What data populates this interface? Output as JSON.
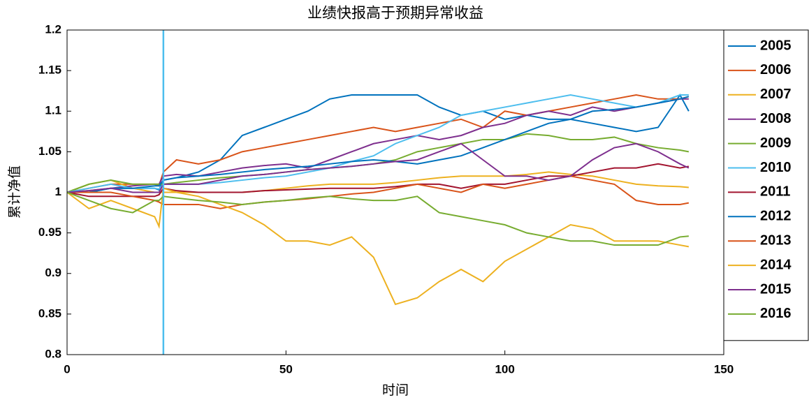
{
  "chart_data": {
    "type": "line",
    "title": "业绩快报高于预期异常收益",
    "xlabel": "时间",
    "ylabel": "累计净值",
    "x": [
      0,
      5,
      10,
      15,
      20,
      21,
      22,
      25,
      30,
      35,
      40,
      45,
      50,
      55,
      60,
      65,
      70,
      75,
      80,
      85,
      90,
      95,
      100,
      105,
      110,
      115,
      120,
      125,
      130,
      135,
      140,
      142
    ],
    "series": [
      {
        "name": "2005",
        "color": "#0072BD",
        "values": [
          1.0,
          1.0,
          1.005,
          1.005,
          1.005,
          1.003,
          1.015,
          1.018,
          1.025,
          1.04,
          1.07,
          1.08,
          1.09,
          1.1,
          1.115,
          1.12,
          1.12,
          1.12,
          1.12,
          1.105,
          1.095,
          1.1,
          1.09,
          1.095,
          1.09,
          1.09,
          1.085,
          1.08,
          1.075,
          1.08,
          1.12,
          1.1
        ]
      },
      {
        "name": "2006",
        "color": "#D95319",
        "values": [
          1.0,
          1.005,
          1.01,
          1.01,
          1.01,
          1.008,
          1.025,
          1.04,
          1.035,
          1.04,
          1.05,
          1.055,
          1.06,
          1.065,
          1.07,
          1.075,
          1.08,
          1.075,
          1.08,
          1.085,
          1.09,
          1.08,
          1.1,
          1.095,
          1.1,
          1.105,
          1.11,
          1.115,
          1.12,
          1.115,
          1.115,
          1.118
        ]
      },
      {
        "name": "2007",
        "color": "#EDB120",
        "values": [
          1.0,
          1.01,
          1.015,
          1.005,
          1.0,
          1.0,
          1.0,
          1.0,
          1.0,
          1.0,
          1.0,
          1.002,
          1.005,
          1.008,
          1.01,
          1.01,
          1.01,
          1.012,
          1.015,
          1.018,
          1.02,
          1.02,
          1.02,
          1.022,
          1.025,
          1.022,
          1.02,
          1.015,
          1.01,
          1.008,
          1.007,
          1.006
        ]
      },
      {
        "name": "2008",
        "color": "#7E2F8E",
        "values": [
          1.0,
          1.002,
          1.005,
          1.008,
          1.01,
          1.01,
          1.02,
          1.022,
          1.02,
          1.025,
          1.03,
          1.033,
          1.035,
          1.03,
          1.04,
          1.05,
          1.06,
          1.065,
          1.07,
          1.065,
          1.07,
          1.08,
          1.085,
          1.095,
          1.1,
          1.095,
          1.105,
          1.1,
          1.105,
          1.11,
          1.115,
          1.115
        ]
      },
      {
        "name": "2009",
        "color": "#77AC30",
        "values": [
          1.0,
          1.01,
          1.015,
          1.01,
          1.01,
          1.01,
          1.01,
          1.012,
          1.015,
          1.018,
          1.02,
          1.022,
          1.025,
          1.028,
          1.03,
          1.032,
          1.035,
          1.04,
          1.05,
          1.055,
          1.06,
          1.065,
          1.065,
          1.072,
          1.07,
          1.065,
          1.065,
          1.068,
          1.06,
          1.055,
          1.052,
          1.05
        ]
      },
      {
        "name": "2010",
        "color": "#4DBEEE",
        "values": [
          1.0,
          1.005,
          1.01,
          1.005,
          1.005,
          1.004,
          1.01,
          1.01,
          1.01,
          1.012,
          1.015,
          1.018,
          1.02,
          1.025,
          1.03,
          1.038,
          1.045,
          1.06,
          1.07,
          1.08,
          1.095,
          1.1,
          1.105,
          1.11,
          1.115,
          1.12,
          1.115,
          1.11,
          1.105,
          1.11,
          1.12,
          1.12
        ]
      },
      {
        "name": "2011",
        "color": "#A2142F",
        "values": [
          1.0,
          0.995,
          0.995,
          0.995,
          0.995,
          0.997,
          1.005,
          1.002,
          1.0,
          1.0,
          1.0,
          1.002,
          1.003,
          1.004,
          1.005,
          1.005,
          1.005,
          1.007,
          1.01,
          1.01,
          1.005,
          1.01,
          1.01,
          1.015,
          1.02,
          1.02,
          1.025,
          1.03,
          1.03,
          1.035,
          1.03,
          1.032
        ]
      },
      {
        "name": "2012",
        "color": "#0072BD",
        "values": [
          1.0,
          1.0,
          1.005,
          1.005,
          1.008,
          1.008,
          1.015,
          1.018,
          1.02,
          1.022,
          1.025,
          1.028,
          1.03,
          1.032,
          1.035,
          1.038,
          1.04,
          1.038,
          1.035,
          1.04,
          1.045,
          1.055,
          1.065,
          1.075,
          1.085,
          1.09,
          1.1,
          1.102,
          1.105,
          1.11,
          1.115,
          1.118
        ]
      },
      {
        "name": "2013",
        "color": "#D95319",
        "values": [
          1.0,
          1.0,
          1.0,
          0.995,
          0.99,
          0.988,
          0.985,
          0.985,
          0.985,
          0.98,
          0.985,
          0.988,
          0.99,
          0.992,
          0.995,
          0.998,
          1.0,
          1.005,
          1.01,
          1.005,
          1.0,
          1.01,
          1.005,
          1.01,
          1.015,
          1.02,
          1.015,
          1.01,
          0.99,
          0.985,
          0.985,
          0.987
        ]
      },
      {
        "name": "2014",
        "color": "#EDB120",
        "values": [
          1.0,
          0.98,
          0.99,
          0.98,
          0.97,
          0.958,
          1.005,
          1.0,
          0.995,
          0.985,
          0.975,
          0.96,
          0.94,
          0.94,
          0.935,
          0.945,
          0.92,
          0.862,
          0.87,
          0.89,
          0.905,
          0.89,
          0.915,
          0.93,
          0.945,
          0.96,
          0.955,
          0.94,
          0.94,
          0.94,
          0.935,
          0.933
        ]
      },
      {
        "name": "2015",
        "color": "#7E2F8E",
        "values": [
          1.0,
          1.002,
          1.005,
          1.0,
          1.0,
          1.0,
          1.01,
          1.01,
          1.01,
          1.015,
          1.02,
          1.022,
          1.025,
          1.028,
          1.03,
          1.032,
          1.035,
          1.038,
          1.04,
          1.05,
          1.06,
          1.04,
          1.02,
          1.02,
          1.015,
          1.02,
          1.04,
          1.055,
          1.06,
          1.05,
          1.035,
          1.03
        ]
      },
      {
        "name": "2016",
        "color": "#77AC30",
        "values": [
          1.0,
          0.99,
          0.98,
          0.975,
          0.99,
          0.99,
          0.995,
          0.993,
          0.99,
          0.988,
          0.985,
          0.988,
          0.99,
          0.993,
          0.995,
          0.992,
          0.99,
          0.99,
          0.995,
          0.975,
          0.97,
          0.965,
          0.96,
          0.95,
          0.945,
          0.94,
          0.94,
          0.935,
          0.935,
          0.935,
          0.945,
          0.946
        ]
      }
    ],
    "vline": 22,
    "vline_color": "#4DBEEE",
    "xlim": [
      0,
      150
    ],
    "xticks": [
      0,
      50,
      100,
      150
    ],
    "ylim": [
      0.8,
      1.2
    ],
    "yticks": [
      0.8,
      0.85,
      0.9,
      0.95,
      1,
      1.05,
      1.1,
      1.15,
      1.2
    ],
    "grid": false,
    "legend": "outside-right"
  }
}
